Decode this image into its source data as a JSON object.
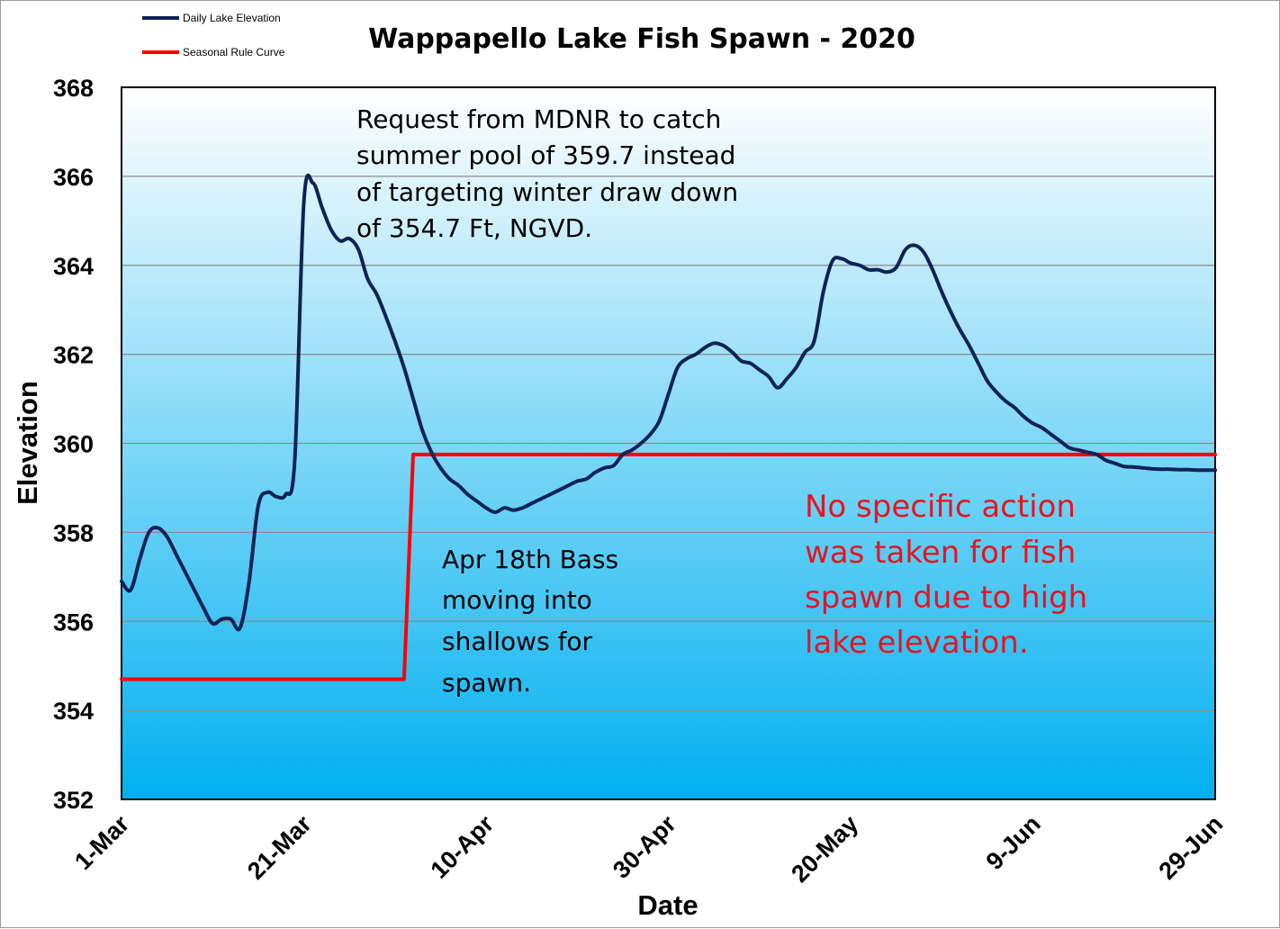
{
  "chart_data": {
    "type": "line",
    "title": "Wappapello Lake Fish Spawn - 2020",
    "xlabel": "Date",
    "ylabel": "Elevation",
    "ylim": [
      352,
      368
    ],
    "yticks": [
      "352",
      "354",
      "356",
      "358",
      "360",
      "362",
      "364",
      "366",
      "368"
    ],
    "xticks": [
      "1-Mar",
      "21-Mar",
      "10-Apr",
      "30-Apr",
      "20-May",
      "9-Jun",
      "29-Jun"
    ],
    "xlim_days": [
      0,
      120
    ],
    "grid": true,
    "legend_position": "top-left",
    "colors": {
      "plot_bg_top": "#ffffff",
      "plot_bg_bottom": "#00b0f0",
      "grid": "#8c8c8c",
      "daily": "#0d2356",
      "rule": "#ff0000",
      "red_note": "#e8141e"
    },
    "series": [
      {
        "name": "Daily Lake Elevation",
        "x": [
          "1-Mar",
          "2-Mar",
          "3-Mar",
          "4-Mar",
          "5-Mar",
          "6-Mar",
          "7-Mar",
          "8-Mar",
          "9-Mar",
          "10-Mar",
          "11-Mar",
          "12-Mar",
          "13-Mar",
          "14-Mar",
          "15-Mar",
          "16-Mar",
          "17-Mar",
          "18-Mar",
          "19-Mar",
          "20-Mar",
          "21-Mar",
          "22-Mar",
          "23-Mar",
          "24-Mar",
          "25-Mar",
          "26-Mar",
          "27-Mar",
          "28-Mar",
          "29-Mar",
          "30-Mar",
          "31-Mar",
          "1-Apr",
          "2-Apr",
          "3-Apr",
          "4-Apr",
          "5-Apr",
          "6-Apr",
          "7-Apr",
          "8-Apr",
          "9-Apr",
          "10-Apr",
          "11-Apr",
          "12-Apr",
          "13-Apr",
          "14-Apr",
          "15-Apr",
          "16-Apr",
          "17-Apr",
          "18-Apr",
          "19-Apr",
          "20-Apr",
          "21-Apr",
          "22-Apr",
          "23-Apr",
          "24-Apr",
          "25-Apr",
          "26-Apr",
          "27-Apr",
          "28-Apr",
          "29-Apr",
          "30-Apr",
          "1-May",
          "2-May",
          "3-May",
          "4-May",
          "5-May",
          "6-May",
          "7-May",
          "8-May",
          "9-May",
          "10-May",
          "11-May",
          "12-May",
          "13-May",
          "14-May",
          "15-May",
          "16-May",
          "17-May",
          "18-May",
          "19-May",
          "20-May",
          "21-May",
          "22-May",
          "23-May",
          "24-May",
          "25-May",
          "26-May",
          "27-May",
          "28-May",
          "29-May",
          "30-May",
          "31-May",
          "1-Jun",
          "2-Jun",
          "3-Jun",
          "4-Jun",
          "5-Jun",
          "6-Jun",
          "7-Jun",
          "8-Jun",
          "9-Jun",
          "10-Jun",
          "11-Jun",
          "12-Jun",
          "13-Jun",
          "14-Jun",
          "15-Jun",
          "16-Jun",
          "17-Jun",
          "18-Jun",
          "19-Jun",
          "20-Jun",
          "21-Jun",
          "22-Jun",
          "23-Jun",
          "24-Jun",
          "25-Jun",
          "26-Jun",
          "27-Jun",
          "28-Jun",
          "29-Jun"
        ],
        "values": [
          356.9,
          356.7,
          357.4,
          358.0,
          358.1,
          357.9,
          357.5,
          357.1,
          356.7,
          356.3,
          355.95,
          356.05,
          356.05,
          355.85,
          356.9,
          358.6,
          358.9,
          358.8,
          358.85,
          359.6,
          365.4,
          365.85,
          365.3,
          364.8,
          364.55,
          364.6,
          364.35,
          363.7,
          363.35,
          362.85,
          362.3,
          361.7,
          361.0,
          360.3,
          359.8,
          359.45,
          359.2,
          359.05,
          358.85,
          358.7,
          358.55,
          358.45,
          358.55,
          358.5,
          358.55,
          358.65,
          358.75,
          358.85,
          358.95,
          359.05,
          359.15,
          359.2,
          359.35,
          359.45,
          359.5,
          359.75,
          359.85,
          360.0,
          360.2,
          360.5,
          361.1,
          361.7,
          361.9,
          362.0,
          362.15,
          362.25,
          362.2,
          362.05,
          361.85,
          361.8,
          361.65,
          361.5,
          361.25,
          361.45,
          361.7,
          362.05,
          362.3,
          363.4,
          364.1,
          364.15,
          364.05,
          364.0,
          363.9,
          363.9,
          363.85,
          363.95,
          364.35,
          364.45,
          364.3,
          363.9,
          363.4,
          362.95,
          362.55,
          362.2,
          361.8,
          361.4,
          361.15,
          360.95,
          360.8,
          360.6,
          360.45,
          360.35,
          360.2,
          360.05,
          359.9,
          359.85,
          359.8,
          359.75,
          359.62,
          359.55,
          359.48,
          359.47,
          359.45,
          359.43,
          359.42,
          359.42,
          359.41,
          359.41,
          359.4,
          359.4,
          359.4
        ]
      },
      {
        "name": "Seasonal Rule Curve",
        "x": [
          "1-Mar",
          "31-Mar",
          "1-Apr",
          "2-Apr",
          "29-Jun"
        ],
        "values": [
          354.7,
          354.7,
          354.7,
          359.75,
          359.75
        ]
      }
    ],
    "annotations": [
      [
        "Request from MDNR to catch",
        "summer pool of 359.7 instead",
        "of targeting winter draw down",
        "of 354.7 Ft, NGVD."
      ],
      [
        "Apr 18th Bass",
        "moving into",
        "shallows for",
        "spawn."
      ],
      [
        "No specific action",
        "was taken for fish",
        "spawn due to high",
        "lake elevation."
      ]
    ]
  }
}
